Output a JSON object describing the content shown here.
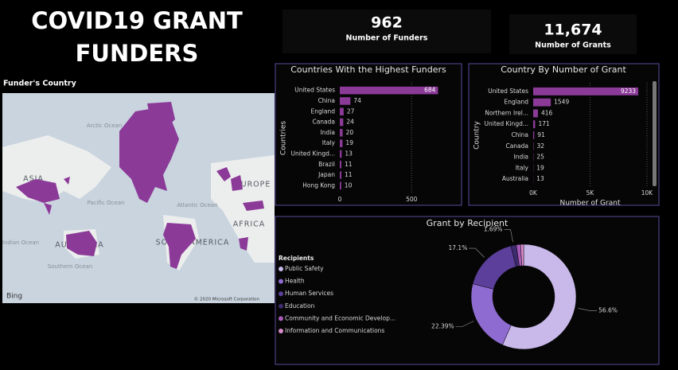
{
  "header": {
    "title": "COVID19 GRANT FUNDERS"
  },
  "kpis": [
    {
      "value": "962",
      "label": "Number of Funders"
    },
    {
      "value": "11,674",
      "label": "Number of Grants"
    }
  ],
  "map": {
    "title": "Funder's Country",
    "labels": [
      "Arctic Ocean",
      "ASIA",
      "Pacific Ocean",
      "EUROPE",
      "Atlantic Ocean",
      "AFRICA",
      "Indian Ocean",
      "AUSTRALIA",
      "SOUTH AMERICA",
      "Southern Ocean"
    ],
    "logo": "Bing",
    "attribution": "© 2020 Microsoft Corporation"
  },
  "chart_data": [
    {
      "type": "bar",
      "orientation": "horizontal",
      "title": "Countries With the Highest Funders",
      "y_label": "Countries",
      "categories": [
        "United States",
        "China",
        "England",
        "Canada",
        "India",
        "Italy",
        "United Kingd...",
        "Brazil",
        "Japan",
        "Hong Kong"
      ],
      "values": [
        684,
        74,
        27,
        24,
        20,
        19,
        13,
        11,
        11,
        10
      ],
      "color": "#8b3a98",
      "xlim": [
        0,
        820
      ],
      "xticks": [
        0,
        500
      ],
      "grid": true
    },
    {
      "type": "bar",
      "orientation": "horizontal",
      "title": "Country By Number of Grant",
      "y_label": "Country",
      "x_label": "Number of Grant",
      "categories": [
        "United States",
        "England",
        "Northern Irel...",
        "United Kingd...",
        "China",
        "Canada",
        "India",
        "Italy",
        "Australia"
      ],
      "values": [
        9233,
        1549,
        416,
        171,
        91,
        32,
        25,
        19,
        13
      ],
      "color": "#8b3a98",
      "xlim": [
        0,
        10000
      ],
      "xticks": [
        {
          "value": 0,
          "label": "0K"
        },
        {
          "value": 5000,
          "label": "5K"
        },
        {
          "value": 10000,
          "label": "10K"
        }
      ],
      "grid": true
    },
    {
      "type": "donut",
      "title": "Grant by Recipient",
      "legend_title": "Recipients",
      "categories": [
        "Public Safety",
        "Health",
        "Human Services",
        "Education",
        "Community and Economic Develop...",
        "Information and Communications"
      ],
      "values": [
        56.6,
        22.39,
        17.1,
        1.69,
        1.3,
        0.92
      ],
      "value_labels": [
        "56.6%",
        "22.39%",
        "17.1%",
        "1.69%",
        null,
        null
      ],
      "colors": [
        "#c9b8ea",
        "#8e6bd0",
        "#5b3f9a",
        "#3e2a6e",
        "#a85cb8",
        "#d98ccc"
      ]
    }
  ]
}
